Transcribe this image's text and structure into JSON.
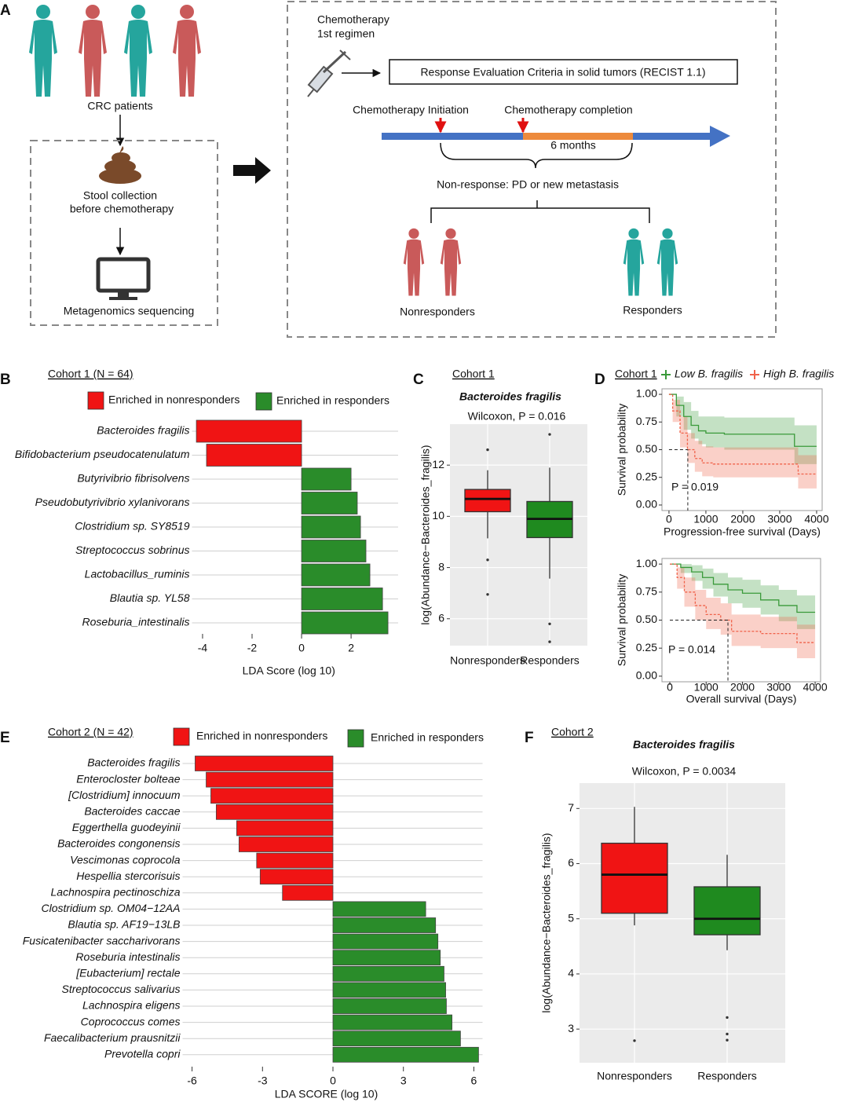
{
  "diagram": {
    "panel": "A",
    "patients": "CRC patients",
    "stool": [
      "Stool collection",
      "before chemotherapy"
    ],
    "sequencing": "Metagenomics sequencing",
    "chemo": [
      "Chemotherapy",
      "1st regimen"
    ],
    "recist": "Response Evaluation Criteria in solid tumors (RECIST 1.1)",
    "initiation": "Chemotherapy Initiation",
    "completion": "Chemotherapy completion",
    "duration": "6 months",
    "nonresponse": "Non-response: PD or new metastasis",
    "nonresponders": "Nonresponders",
    "responders": "Responders"
  },
  "chart_data": [
    {
      "panel": "B",
      "type": "bar",
      "orientation": "horizontal",
      "title": "Cohort 1 (N = 64)",
      "categories": [
        "Bacteroides fragilis",
        "Bifidobacterium pseudocatenulatum",
        "Butyrivibrio fibrisolvens",
        "Pseudobutyrivibrio xylanivorans",
        "Clostridium sp. SY8519",
        "Streptococcus sobrinus",
        "Lactobacillus_ruminis",
        "Blautia sp. YL58",
        "Roseburia_intestinalis"
      ],
      "series": [
        {
          "name": "Enriched in nonresponders",
          "color": "#f01414",
          "values": [
            -4.25,
            -3.84,
            null,
            null,
            null,
            null,
            null,
            null,
            null
          ]
        },
        {
          "name": "Enriched in responders",
          "color": "#2a8c2a",
          "values": [
            null,
            null,
            2.0,
            2.25,
            2.38,
            2.6,
            2.76,
            3.27,
            3.49
          ]
        }
      ],
      "xlim": [
        -4.3,
        3.9
      ],
      "xticks": [
        -4,
        -2,
        0,
        2
      ],
      "xlabel": "LDA Score (log 10)",
      "grid": true
    },
    {
      "panel": "C",
      "type": "box",
      "title": "Cohort 1",
      "subtitle": "Bacteroides fragilis",
      "annotation": "Wilcoxon, P = 0.016",
      "ylabel": "log(Abundance−Bacteroides_fragilis)",
      "categories": [
        "Nonresponders",
        "Responders"
      ],
      "colors": [
        "#f01414",
        "#1f8a1f"
      ],
      "boxes": [
        {
          "min": 9.14,
          "q1": 10.18,
          "median": 10.68,
          "q3": 11.05,
          "max": 11.8,
          "outliers": [
            12.6,
            8.3,
            6.95
          ]
        },
        {
          "min": 7.57,
          "q1": 9.17,
          "median": 9.9,
          "q3": 10.58,
          "max": 11.9,
          "outliers": [
            13.2,
            5.8,
            5.1
          ]
        }
      ],
      "ylim": [
        4.95,
        13.6
      ],
      "yticks": [
        6,
        8,
        10,
        12
      ],
      "grid": true
    },
    {
      "panel": "D",
      "type": "survival",
      "title": "Cohort 1",
      "xlabel": "Progression-free survival (Days)",
      "ylabel": "Survival probability",
      "annotation": "P = 0.019",
      "series": [
        {
          "name": "Low B. fragilis",
          "color": "#3a9a3a",
          "x": [
            0,
            200,
            400,
            600,
            800,
            1000,
            1500,
            2500,
            3400,
            4000
          ],
          "values": [
            1,
            0.9,
            0.8,
            0.72,
            0.67,
            0.65,
            0.64,
            0.64,
            0.53,
            0.53
          ],
          "lower": [
            1,
            0.8,
            0.68,
            0.6,
            0.55,
            0.52,
            0.5,
            0.5,
            0.37,
            0.37
          ],
          "upper": [
            1,
            0.98,
            0.93,
            0.85,
            0.8,
            0.8,
            0.79,
            0.79,
            0.72,
            0.72
          ]
        },
        {
          "name": "High B. fragilis",
          "color": "#f0624a",
          "x": [
            0,
            100,
            300,
            500,
            700,
            900,
            1200,
            2000,
            3500,
            4000
          ],
          "values": [
            1,
            0.85,
            0.65,
            0.5,
            0.42,
            0.38,
            0.37,
            0.37,
            0.28,
            0.28
          ],
          "lower": [
            1,
            0.75,
            0.52,
            0.38,
            0.3,
            0.26,
            0.25,
            0.25,
            0.15,
            0.15
          ],
          "upper": [
            1,
            0.95,
            0.8,
            0.65,
            0.58,
            0.53,
            0.52,
            0.52,
            0.45,
            0.45
          ]
        }
      ],
      "median": {
        "x": 510,
        "y": 0.5
      },
      "legend": "top",
      "xlim": [
        -190,
        4150
      ],
      "xticks": [
        0,
        1000,
        2000,
        3000,
        4000
      ],
      "ylim": [
        -0.05,
        1.05
      ],
      "yticks": [
        {
          "value": 0,
          "label": "0.00"
        },
        {
          "value": 0.25,
          "label": "0.25"
        },
        {
          "value": 0.5,
          "label": "0.50"
        },
        {
          "value": 0.75,
          "label": "0.75"
        },
        {
          "value": 1,
          "label": "1.00"
        }
      ]
    },
    {
      "type": "survival",
      "xlabel": "Overall survival (Days)",
      "ylabel": "Survival probability",
      "annotation": "P = 0.014",
      "series": [
        {
          "color": "#3a9a3a",
          "x": [
            0,
            300,
            600,
            900,
            1200,
            1600,
            2000,
            2500,
            3000,
            3500,
            4000
          ],
          "values": [
            1,
            0.97,
            0.93,
            0.88,
            0.82,
            0.77,
            0.74,
            0.68,
            0.63,
            0.57,
            0.57
          ],
          "lower": [
            1,
            0.92,
            0.85,
            0.78,
            0.71,
            0.65,
            0.61,
            0.55,
            0.49,
            0.42,
            0.42
          ],
          "upper": [
            1,
            1,
            0.99,
            0.96,
            0.92,
            0.88,
            0.86,
            0.81,
            0.77,
            0.72,
            0.72
          ]
        },
        {
          "color": "#f0624a",
          "x": [
            0,
            200,
            400,
            700,
            1000,
            1400,
            1700,
            2500,
            3500,
            4000
          ],
          "values": [
            1,
            0.88,
            0.75,
            0.63,
            0.55,
            0.5,
            0.4,
            0.38,
            0.3,
            0.3
          ],
          "lower": [
            1,
            0.78,
            0.62,
            0.5,
            0.42,
            0.37,
            0.27,
            0.25,
            0.16,
            0.16
          ],
          "upper": [
            1,
            0.97,
            0.88,
            0.77,
            0.7,
            0.65,
            0.55,
            0.53,
            0.46,
            0.46
          ]
        }
      ],
      "median": {
        "x": 1600,
        "y": 0.5
      },
      "xlim": [
        -216,
        4150
      ],
      "xticks": [
        0,
        1000,
        2000,
        3000,
        4000
      ],
      "ylim": [
        -0.05,
        1.05
      ],
      "yticks": [
        {
          "value": 0,
          "label": "0.00"
        },
        {
          "value": 0.25,
          "label": "0.25"
        },
        {
          "value": 0.5,
          "label": "0.50"
        },
        {
          "value": 0.75,
          "label": "0.75"
        },
        {
          "value": 1,
          "label": "1.00"
        }
      ]
    },
    {
      "panel": "E",
      "type": "bar",
      "orientation": "horizontal",
      "title": "Cohort 2 (N = 42)",
      "categories": [
        "Bacteroides fragilis",
        "Enterocloster bolteae",
        "[Clostridium] innocuum",
        "Bacteroides caccae",
        "Eggerthella guodeyinii",
        "Bacteroides congonensis",
        "Vescimonas coprocola",
        "Hespellia stercorisuis",
        "Lachnospira pectinoschiza",
        "Clostridium sp. OM04−12AA",
        "Blautia sp. AF19−13LB",
        "Fusicatenibacter saccharivorans",
        "Roseburia intestinalis",
        "[Eubacterium] rectale",
        "Streptococcus salivarius",
        "Lachnospira eligens",
        "Coprococcus comes",
        "Faecalibacterium prausnitzii",
        "Prevotella copri"
      ],
      "series": [
        {
          "name": "Enriched in nonresponders",
          "color": "#f01414",
          "values": [
            -5.87,
            -5.4,
            -5.2,
            -4.97,
            -4.1,
            -4.0,
            -3.25,
            -3.1,
            -2.15,
            null,
            null,
            null,
            null,
            null,
            null,
            null,
            null,
            null,
            null
          ]
        },
        {
          "name": "Enriched in responders",
          "color": "#2a8c2a",
          "values": [
            null,
            null,
            null,
            null,
            null,
            null,
            null,
            null,
            null,
            3.95,
            4.37,
            4.47,
            4.57,
            4.73,
            4.8,
            4.83,
            5.07,
            5.43,
            6.2
          ]
        }
      ],
      "xlim": [
        -6.27,
        6.37
      ],
      "xticks": [
        -6,
        -3,
        0,
        3,
        6
      ],
      "xlabel": "LDA SCORE (log 10)",
      "grid": true
    },
    {
      "panel": "F",
      "type": "box",
      "title": "Cohort 2",
      "subtitle": "Bacteroides fragilis",
      "annotation": "Wilcoxon, P = 0.0034",
      "ylabel": "log(Abundance−Bacteroides_fragilis)",
      "categories": [
        "Nonresponders",
        "Responders"
      ],
      "colors": [
        "#f01414",
        "#1f8a1f"
      ],
      "boxes": [
        {
          "min": 4.88,
          "q1": 5.1,
          "median": 5.8,
          "q3": 6.37,
          "max": 7.03,
          "outliers": [
            2.79
          ]
        },
        {
          "min": 4.43,
          "q1": 4.71,
          "median": 5.0,
          "q3": 5.58,
          "max": 6.16,
          "outliers": [
            3.21,
            2.91,
            2.8
          ]
        }
      ],
      "ylim": [
        2.39,
        7.46
      ],
      "yticks": [
        3,
        4,
        5,
        6,
        7
      ],
      "grid": true
    }
  ]
}
